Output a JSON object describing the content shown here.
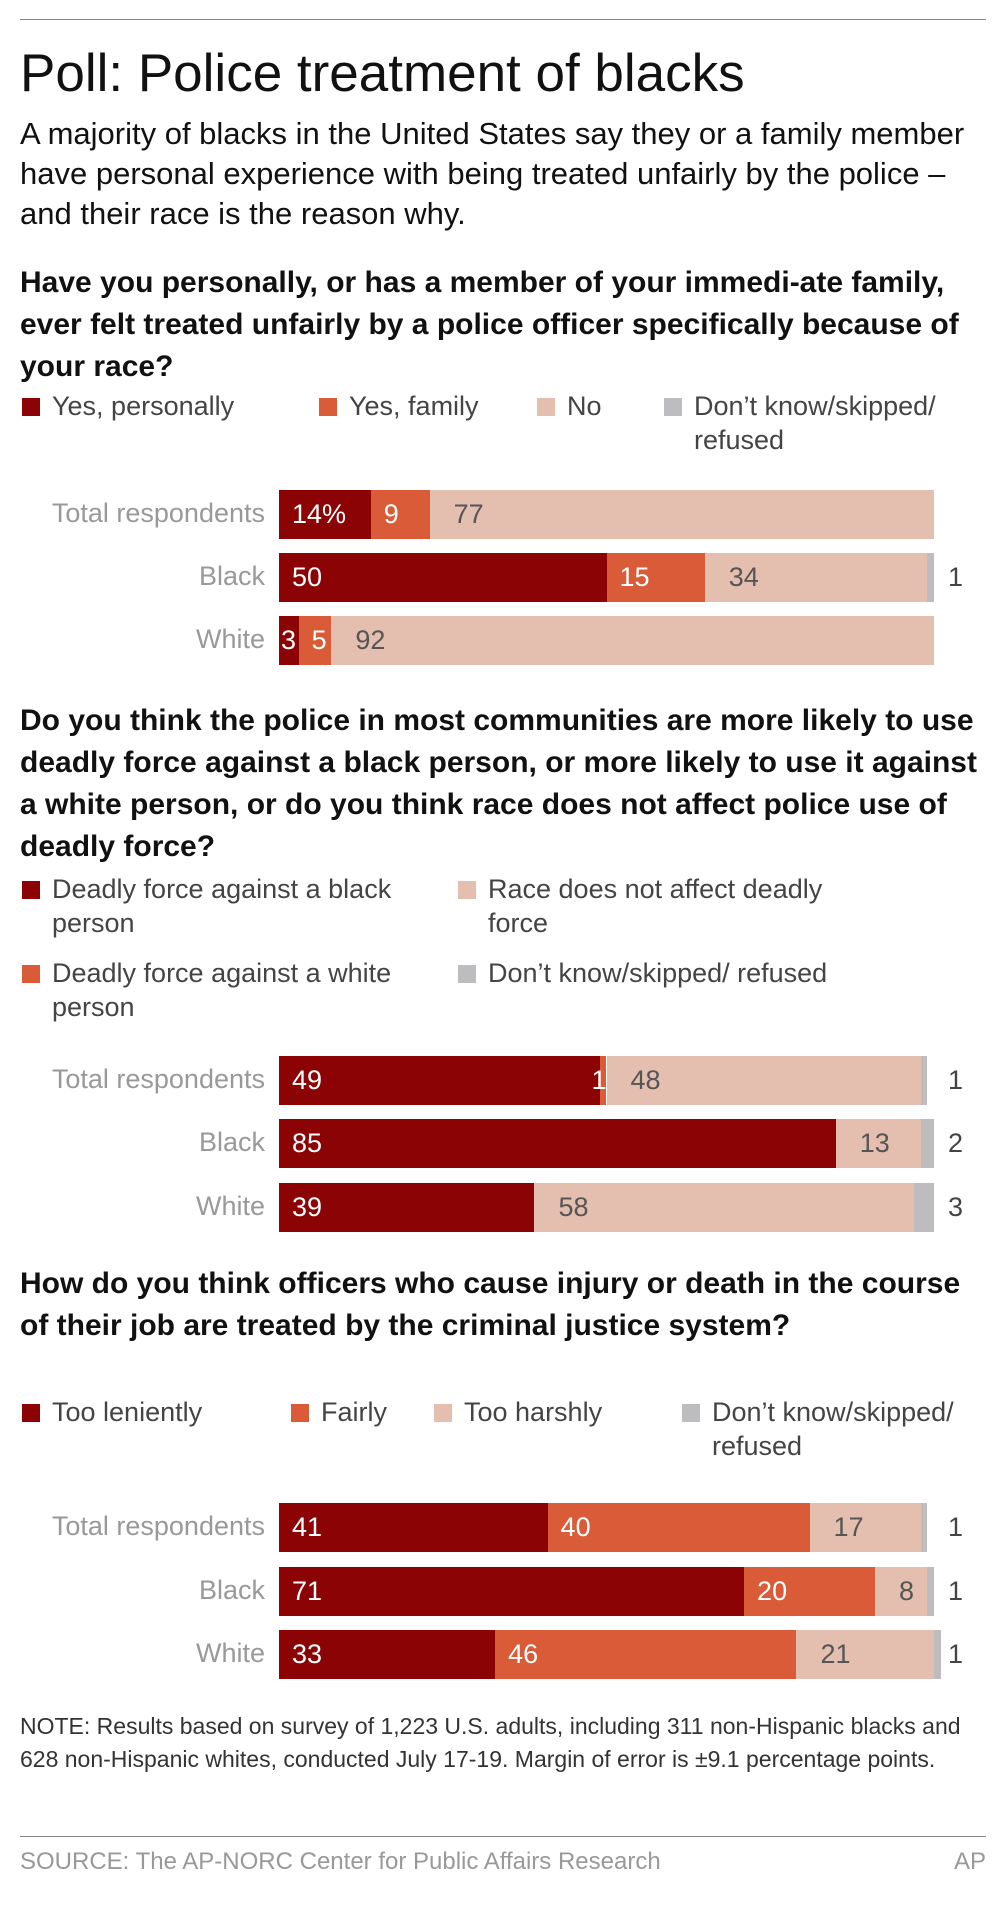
{
  "title": "Poll: Police treatment of blacks",
  "subtitle": "A majority of blacks in the United States say they or a family member have personal experience with being treated unfairly by the police – and their race is the reason why.",
  "note": "NOTE: Results based on survey of 1,223 U.S. adults, including 311 non-Hispanic blacks and 628 non-Hispanic whites, conducted July 17-19. Margin of error is ±9.1 percentage points.",
  "source": "SOURCE: The AP-NORC Center for Public Affairs Research",
  "credit": "AP",
  "colors": {
    "dark_red": "#8B0304",
    "orange": "#D95B37",
    "pale": "#E4BFAF",
    "gray": "#BDBDBF"
  },
  "chart_data": [
    {
      "type": "bar",
      "orientation": "horizontal",
      "stacked": true,
      "unit": "%",
      "title": "Have you personally, or has a member of your immedi-ate family, ever felt treated unfairly by a police officer specifically because of your race?",
      "categories": [
        "Total respondents",
        "Black",
        "White"
      ],
      "series": [
        {
          "name": "Yes, personally",
          "color": "#8B0304",
          "values": [
            14,
            50,
            3
          ]
        },
        {
          "name": "Yes, family",
          "color": "#D95B37",
          "values": [
            9,
            15,
            5
          ]
        },
        {
          "name": "No",
          "color": "#E4BFAF",
          "values": [
            77,
            34,
            92
          ]
        },
        {
          "name": "Don’t know/skipped/ refused",
          "color": "#BDBDBF",
          "values": [
            0,
            1,
            0
          ]
        }
      ],
      "first_label_suffix": "%",
      "legend": "top",
      "xlim": [
        0,
        100
      ]
    },
    {
      "type": "bar",
      "orientation": "horizontal",
      "stacked": true,
      "unit": "%",
      "title": "Do you think the police in most communities are more likely to use deadly force against a black person, or more likely to use it against a white person, or do you think race does not affect police use of deadly force?",
      "categories": [
        "Total respondents",
        "Black",
        "White"
      ],
      "series": [
        {
          "name": "Deadly force against a black person",
          "color": "#8B0304",
          "values": [
            49,
            85,
            39
          ]
        },
        {
          "name": "Deadly force against a white person",
          "color": "#D95B37",
          "values": [
            1,
            0,
            0
          ]
        },
        {
          "name": "Race does not affect deadly force",
          "color": "#E4BFAF",
          "values": [
            48,
            13,
            58
          ]
        },
        {
          "name": "Don’t know/skipped/ refused",
          "color": "#BDBDBF",
          "values": [
            1,
            2,
            3
          ]
        }
      ],
      "legend": "top",
      "xlim": [
        0,
        100
      ]
    },
    {
      "type": "bar",
      "orientation": "horizontal",
      "stacked": true,
      "unit": "%",
      "title": "How do you think officers who cause injury or death in the course of their job are treated by the criminal justice system?",
      "categories": [
        "Total respondents",
        "Black",
        "White"
      ],
      "series": [
        {
          "name": "Too leniently",
          "color": "#8B0304",
          "values": [
            41,
            71,
            33
          ]
        },
        {
          "name": "Fairly",
          "color": "#D95B37",
          "values": [
            40,
            20,
            46
          ]
        },
        {
          "name": "Too harshly",
          "color": "#E4BFAF",
          "values": [
            17,
            8,
            21
          ]
        },
        {
          "name": "Don’t know/skipped/ refused",
          "color": "#BDBDBF",
          "values": [
            1,
            1,
            1
          ]
        }
      ],
      "legend": "top",
      "xlim": [
        0,
        100
      ]
    }
  ]
}
